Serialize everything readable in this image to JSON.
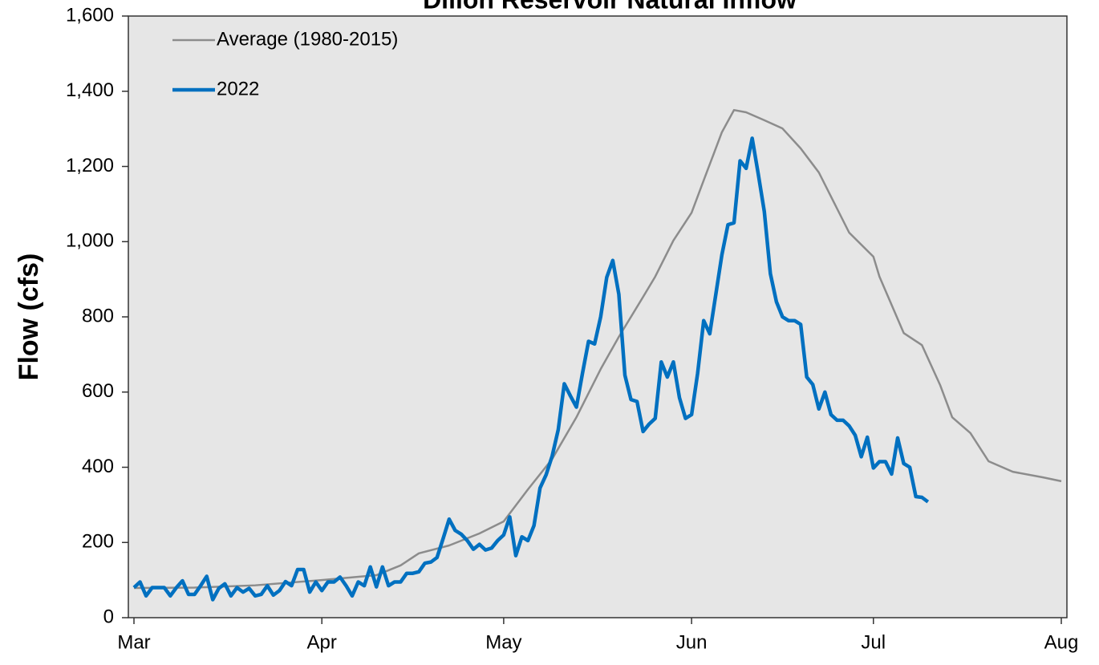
{
  "chart_data": {
    "type": "line",
    "title": "Dillon Reservoir Natural Inflow",
    "ylabel": "Flow (cfs)",
    "xlim": [
      0,
      153
    ],
    "xticks": [
      {
        "value": 0,
        "label": "Mar"
      },
      {
        "value": 31,
        "label": "Apr"
      },
      {
        "value": 61,
        "label": "May"
      },
      {
        "value": 92,
        "label": "Jun"
      },
      {
        "value": 122,
        "label": "Jul"
      },
      {
        "value": 153,
        "label": "Aug"
      }
    ],
    "ylim": [
      0,
      1600
    ],
    "yticks": [
      0,
      200,
      400,
      600,
      800,
      {
        "value": 1000,
        "label": "1,000"
      },
      {
        "value": 1200,
        "label": "1,200"
      },
      {
        "value": 1400,
        "label": "1,400"
      },
      {
        "value": 1600,
        "label": "1,600"
      }
    ],
    "legend": "upper left",
    "series": [
      {
        "name": "Average (1980-2015)",
        "color": "#8c8c8c",
        "width": 2.5,
        "x": [
          0,
          10,
          20,
          31,
          40,
          44,
          47,
          52,
          57,
          61,
          65,
          69,
          73,
          77,
          80,
          84,
          86,
          89,
          92,
          94,
          97,
          99,
          101,
          104,
          107,
          110,
          113,
          116,
          118,
          122,
          123,
          125,
          127,
          130,
          133,
          135,
          138,
          141,
          145,
          150,
          153
        ],
        "values": [
          79,
          80,
          86,
          100,
          113,
          139,
          171,
          192,
          224,
          256,
          341,
          422,
          533,
          661,
          747,
          853,
          907,
          1003,
          1077,
          1163,
          1291,
          1350,
          1344,
          1323,
          1301,
          1248,
          1184,
          1088,
          1024,
          960,
          907,
          832,
          757,
          725,
          619,
          533,
          491,
          416,
          388,
          373,
          363
        ]
      },
      {
        "name": "2022",
        "color": "#0070c0",
        "width": 4.5,
        "x": [
          0,
          1,
          2,
          3,
          4,
          5,
          6,
          7,
          8,
          9,
          10,
          11,
          12,
          13,
          14,
          15,
          16,
          17,
          18,
          19,
          20,
          21,
          22,
          23,
          24,
          25,
          26,
          27,
          28,
          29,
          30,
          31,
          32,
          33,
          34,
          35,
          36,
          37,
          38,
          39,
          40,
          41,
          42,
          43,
          44,
          45,
          46,
          47,
          48,
          49,
          50,
          51,
          52,
          53,
          54,
          55,
          56,
          57,
          58,
          59,
          60,
          61,
          62,
          63,
          64,
          65,
          66,
          67,
          68,
          69,
          70,
          71,
          72,
          73,
          74,
          75,
          76,
          77,
          78,
          79,
          80,
          81,
          82,
          83,
          84,
          85,
          86,
          87,
          88,
          89,
          90,
          91,
          92,
          93,
          94,
          95,
          96,
          97,
          98,
          99,
          100,
          101,
          102,
          103,
          104,
          105,
          106,
          107,
          108,
          109,
          110,
          111,
          112,
          113,
          114,
          115,
          116,
          117,
          118,
          119,
          120,
          121,
          122,
          123,
          124,
          125,
          126,
          127,
          128,
          129,
          130,
          131
        ],
        "values": [
          80,
          95,
          58,
          80,
          80,
          80,
          58,
          80,
          98,
          62,
          62,
          85,
          110,
          48,
          78,
          90,
          58,
          80,
          68,
          78,
          58,
          62,
          85,
          60,
          72,
          96,
          85,
          128,
          128,
          68,
          95,
          72,
          95,
          95,
          108,
          85,
          58,
          95,
          85,
          135,
          82,
          135,
          85,
          95,
          95,
          118,
          118,
          122,
          145,
          148,
          160,
          210,
          262,
          232,
          222,
          205,
          182,
          195,
          180,
          185,
          205,
          220,
          268,
          165,
          215,
          205,
          245,
          345,
          380,
          430,
          500,
          622,
          590,
          560,
          650,
          735,
          728,
          800,
          905,
          950,
          860,
          645,
          580,
          575,
          495,
          515,
          530,
          680,
          640,
          680,
          585,
          530,
          540,
          650,
          790,
          755,
          860,
          965,
          1045,
          1050,
          1215,
          1195,
          1275,
          1180,
          1080,
          915,
          840,
          800,
          790,
          790,
          780,
          640,
          620,
          555,
          600,
          540,
          525,
          525,
          510,
          485,
          428,
          480,
          398,
          415,
          415,
          382,
          478,
          410,
          400,
          322,
          320,
          308
        ]
      }
    ]
  }
}
